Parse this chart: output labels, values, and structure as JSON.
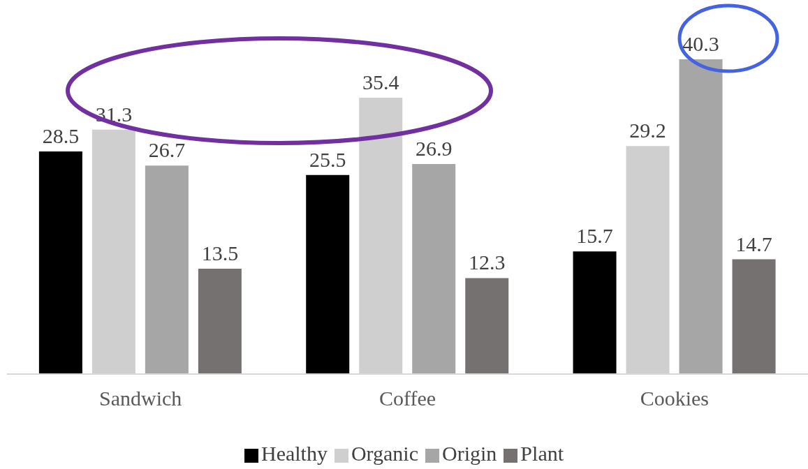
{
  "chart_data": {
    "type": "bar",
    "categories": [
      "Sandwich",
      "Coffee",
      "Cookies"
    ],
    "series": [
      {
        "name": "Healthy",
        "color": "#000000",
        "values": [
          28.5,
          25.5,
          15.7
        ]
      },
      {
        "name": "Organic",
        "color": "#d0cfd0",
        "values": [
          31.3,
          35.4,
          29.2
        ]
      },
      {
        "name": "Origin",
        "color": "#a6a6a6",
        "values": [
          26.7,
          26.9,
          40.3
        ]
      },
      {
        "name": "Plant",
        "color": "#767171",
        "values": [
          13.5,
          12.3,
          14.7
        ]
      }
    ],
    "data_labels": true,
    "legend": "bottom",
    "grid": false
  }
}
